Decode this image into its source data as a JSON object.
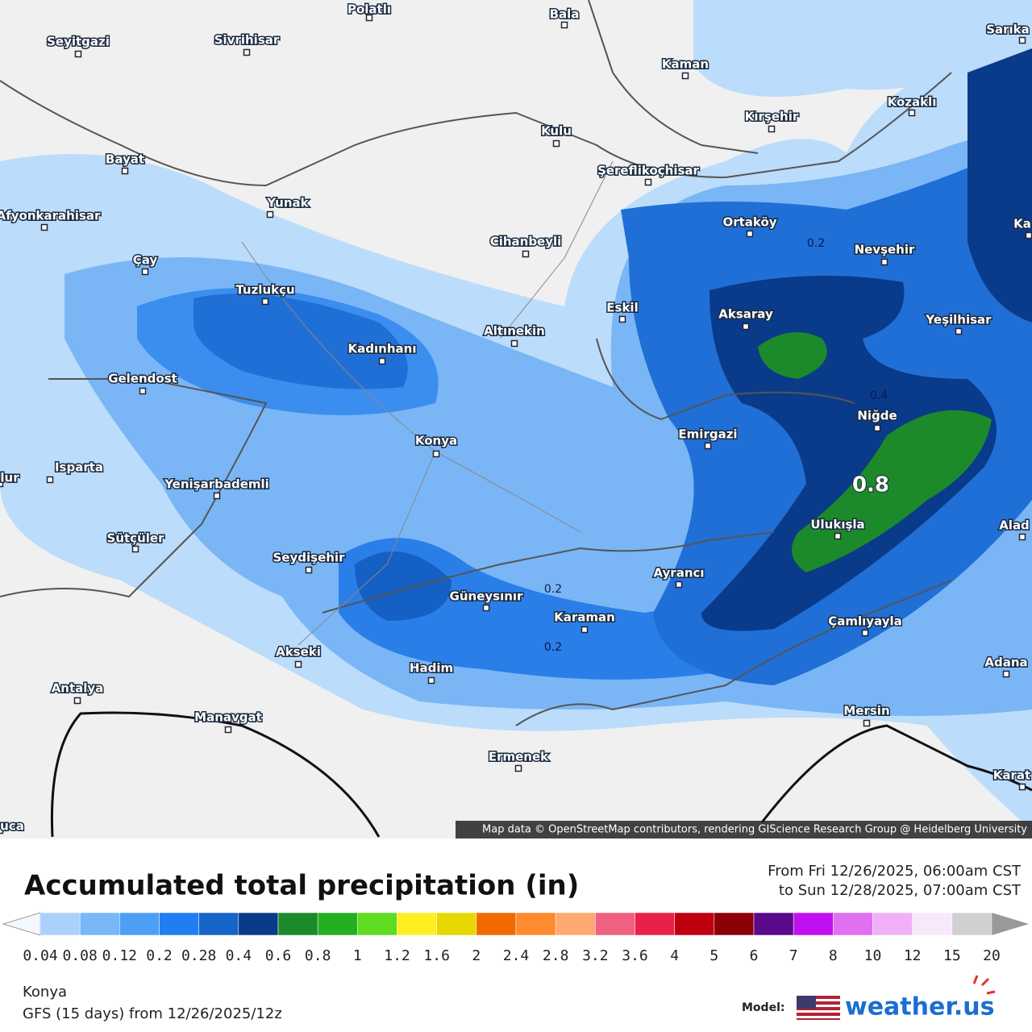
{
  "map": {
    "places": [
      "Polatlı",
      "Bala",
      "Seyitgazi",
      "Sivrihisar",
      "Kaman",
      "Sarıka",
      "Kozaklı",
      "Kırşehir",
      "Kulu",
      "Bayat",
      "Şereflikoçhisar",
      "Yunak",
      "Afyonkarahisar",
      "Ortaköy",
      "Ka",
      "Cihanbeyli",
      "Nevşehir",
      "Çay",
      "Tuzlukçu",
      "Aksaray",
      "Eskil",
      "Yeşilhisar",
      "Altınekin",
      "Kadınhanı",
      "Gelendost",
      "Niğde",
      "Emirgazi",
      "Konya",
      "Isparta",
      "lur",
      "Yenişarbademli",
      "Ulukışla",
      "Alad",
      "Sütçüler",
      "Seydişehir",
      "Ayrancı",
      "Güneysınır",
      "Karaman",
      "Çamlıyayla",
      "Akseki",
      "Adana",
      "Hadim",
      "Antalya",
      "Mersin",
      "Manavgat",
      "Ermenek",
      "Karat",
      "uca"
    ],
    "contour_labels": [
      "0.2",
      "0.4",
      "0.8",
      "0.2",
      "0.2"
    ],
    "attribution": "Map data © OpenStreetMap contributors, rendering GIScience Research Group @ Heidelberg University"
  },
  "legend": {
    "title": "Accumulated total precipitation (in)",
    "period": [
      "From Fri 12/26/2025, 06:00am CST",
      "to Sun 12/28/2025, 07:00am CST"
    ],
    "ticks": [
      0.04,
      0.08,
      0.12,
      0.2,
      0.28,
      0.4,
      0.6,
      0.8,
      1,
      1.2,
      1.6,
      2,
      2.4,
      2.8,
      3.2,
      3.6,
      4,
      5,
      6,
      7,
      8,
      10,
      12,
      15,
      20
    ],
    "colors": [
      "#a9d1fb",
      "#78b7f8",
      "#4d9ff5",
      "#1f7ff0",
      "#1565c8",
      "#0a3a8a",
      "#1c8a2a",
      "#22b022",
      "#5ddc22",
      "#ffee22",
      "#e6d800",
      "#f06a00",
      "#ff8a30",
      "#ffa870",
      "#f06080",
      "#e8204a",
      "#c00010",
      "#8c0008",
      "#5a0a8a",
      "#c010f0",
      "#e070f0",
      "#f0b0f8",
      "#f8e8fc",
      "#d0d0d0"
    ]
  },
  "footer": {
    "location": "Konya",
    "model_run": "GFS (15 days) from 12/26/2025/12z",
    "model_label": "Model:",
    "brand": "weather.us"
  }
}
